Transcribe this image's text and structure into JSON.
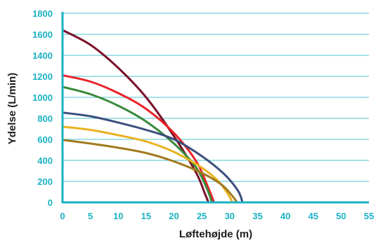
{
  "chart_data": {
    "type": "line",
    "title": "",
    "xlabel": "Løftehøjde (m)",
    "ylabel": "Ydelse (L/min)",
    "xlim": [
      0,
      55
    ],
    "ylim": [
      0,
      1800
    ],
    "x_ticks": [
      "0",
      "5",
      "10",
      "15",
      "20",
      "25",
      "30",
      "35",
      "40",
      "45",
      "50",
      "55"
    ],
    "y_ticks": [
      "0",
      "200",
      "400",
      "600",
      "800",
      "1000",
      "1200",
      "1400",
      "1600",
      "1800"
    ],
    "grid": true,
    "legend": "none",
    "axis_color": "#1ab2c4",
    "series": [
      {
        "color": "#7b1128",
        "x": [
          0,
          5,
          10,
          15,
          20,
          24,
          25.5,
          26.2
        ],
        "y": [
          1640,
          1500,
          1280,
          1000,
          630,
          280,
          90,
          0
        ]
      },
      {
        "color": "#e8232a",
        "x": [
          0,
          5,
          10,
          15,
          20,
          24,
          26,
          27.2
        ],
        "y": [
          1210,
          1150,
          1040,
          890,
          660,
          390,
          160,
          0
        ]
      },
      {
        "color": "#3a8a3c",
        "x": [
          0,
          5,
          10,
          15,
          20,
          24,
          26,
          26.8
        ],
        "y": [
          1100,
          1030,
          920,
          770,
          560,
          330,
          120,
          0
        ]
      },
      {
        "color": "#3c4f7c",
        "x": [
          0,
          5,
          10,
          15,
          20,
          25,
          29,
          31.5,
          32.3
        ],
        "y": [
          855,
          820,
          760,
          690,
          600,
          440,
          270,
          110,
          0
        ]
      },
      {
        "color": "#e8b21f",
        "x": [
          0,
          5,
          10,
          15,
          20,
          25,
          28,
          29.8,
          30.5
        ],
        "y": [
          720,
          690,
          640,
          580,
          480,
          330,
          200,
          70,
          0
        ]
      },
      {
        "color": "#a0791e",
        "x": [
          0,
          5,
          10,
          15,
          20,
          25,
          28.5,
          30.5,
          31.3
        ],
        "y": [
          595,
          560,
          520,
          470,
          390,
          280,
          170,
          60,
          0
        ]
      }
    ]
  }
}
